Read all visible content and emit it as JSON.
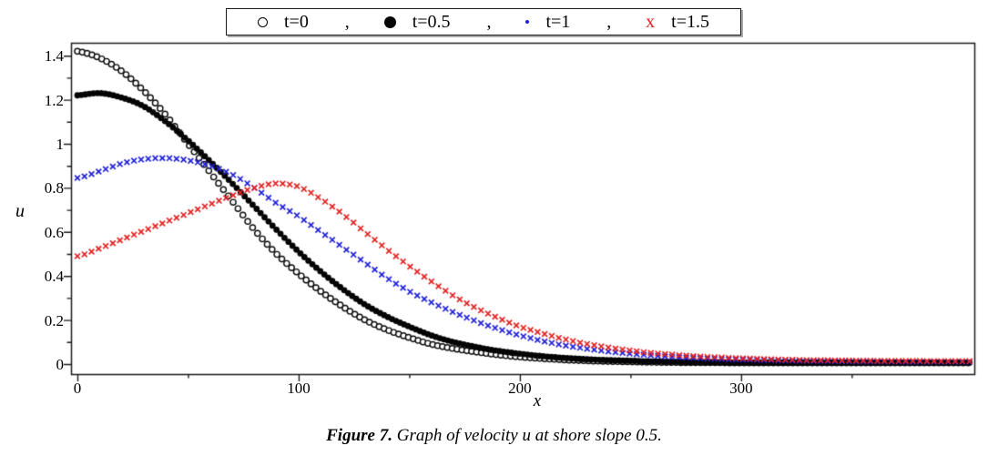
{
  "figure": {
    "caption_prefix": "Figure 7.",
    "caption_text": " Graph of velocity u at shore slope 0.5."
  },
  "chart_data": {
    "type": "scatter",
    "title": "",
    "xlabel": "x",
    "ylabel": "u",
    "xlim": [
      -3,
      405
    ],
    "ylim": [
      -0.045,
      1.458
    ],
    "grid": false,
    "legend_position": "top-center-outside",
    "legend_separator": ",",
    "x_ticks": [
      0,
      100,
      200,
      300
    ],
    "x_tick_labels": [
      "0",
      "100",
      "200",
      "300"
    ],
    "x_minor_ticks": [
      50,
      150,
      250,
      350
    ],
    "y_ticks": [
      0,
      0.2,
      0.4,
      0.6,
      0.8,
      1.0,
      1.2,
      1.4
    ],
    "y_tick_labels": [
      "0",
      "0.2",
      "0.4",
      "0.6",
      "0.8",
      "1",
      "1.2",
      "1.4"
    ],
    "y_minor_ticks": [
      0.1,
      0.3,
      0.5,
      0.7,
      0.9,
      1.1,
      1.3
    ],
    "axis_color": "#1a1a1a",
    "x": [
      0,
      10,
      20,
      30,
      40,
      50,
      60,
      70,
      80,
      90,
      100,
      110,
      120,
      130,
      140,
      150,
      160,
      170,
      180,
      190,
      200,
      210,
      220,
      230,
      240,
      250,
      260,
      270,
      280,
      290,
      300,
      310,
      320,
      330,
      340,
      350,
      360,
      370,
      380,
      390,
      400
    ],
    "series": [
      {
        "name": "t0",
        "legend_label": "t=0",
        "legend_glyph": "open-circle",
        "glyph_char": "",
        "marker": "open-circle",
        "color": "#0a0a0a",
        "marker_step": 2.2,
        "values": [
          1.42,
          1.39,
          1.33,
          1.24,
          1.13,
          1.0,
          0.87,
          0.74,
          0.61,
          0.5,
          0.41,
          0.33,
          0.26,
          0.2,
          0.155,
          0.12,
          0.09,
          0.07,
          0.055,
          0.042,
          0.032,
          0.025,
          0.019,
          0.015,
          0.012,
          0.01,
          0.008,
          0.007,
          0.006,
          0.006,
          0.005,
          0.005,
          0.005,
          0.005,
          0.005,
          0.005,
          0.005,
          0.005,
          0.005,
          0.005,
          0.005
        ]
      },
      {
        "name": "t0_5",
        "legend_label": "t=0.5",
        "legend_glyph": "filled-circle",
        "glyph_char": "",
        "marker": "filled-circle",
        "color": "#050505",
        "marker_step": 1.8,
        "values": [
          1.22,
          1.23,
          1.21,
          1.17,
          1.1,
          1.015,
          0.92,
          0.82,
          0.715,
          0.61,
          0.51,
          0.42,
          0.34,
          0.27,
          0.215,
          0.17,
          0.13,
          0.1,
          0.078,
          0.06,
          0.047,
          0.036,
          0.028,
          0.022,
          0.018,
          0.015,
          0.012,
          0.01,
          0.009,
          0.008,
          0.007,
          0.007,
          0.006,
          0.006,
          0.006,
          0.006,
          0.006,
          0.006,
          0.006,
          0.006,
          0.006
        ]
      },
      {
        "name": "t1",
        "legend_label": "t=1",
        "legend_glyph": "dot",
        "glyph_char": "",
        "marker": "x-cross",
        "color": "#2121d6",
        "marker_step": 3.2,
        "values": [
          0.845,
          0.875,
          0.91,
          0.93,
          0.935,
          0.925,
          0.9,
          0.86,
          0.8,
          0.73,
          0.67,
          0.6,
          0.53,
          0.46,
          0.39,
          0.33,
          0.28,
          0.235,
          0.195,
          0.16,
          0.13,
          0.105,
          0.085,
          0.07,
          0.057,
          0.047,
          0.039,
          0.032,
          0.027,
          0.023,
          0.02,
          0.018,
          0.016,
          0.014,
          0.013,
          0.012,
          0.011,
          0.011,
          0.01,
          0.01,
          0.01
        ]
      },
      {
        "name": "t1_5",
        "legend_label": "t=1.5",
        "legend_glyph": "x-letter",
        "glyph_char": "x",
        "marker": "x-cross",
        "color": "#e22222",
        "marker_step": 3.2,
        "values": [
          0.49,
          0.525,
          0.565,
          0.605,
          0.645,
          0.685,
          0.725,
          0.765,
          0.8,
          0.82,
          0.805,
          0.75,
          0.68,
          0.6,
          0.52,
          0.445,
          0.375,
          0.31,
          0.255,
          0.21,
          0.17,
          0.14,
          0.113,
          0.092,
          0.075,
          0.061,
          0.05,
          0.042,
          0.035,
          0.03,
          0.026,
          0.023,
          0.02,
          0.018,
          0.017,
          0.016,
          0.015,
          0.014,
          0.014,
          0.013,
          0.013
        ]
      }
    ]
  }
}
